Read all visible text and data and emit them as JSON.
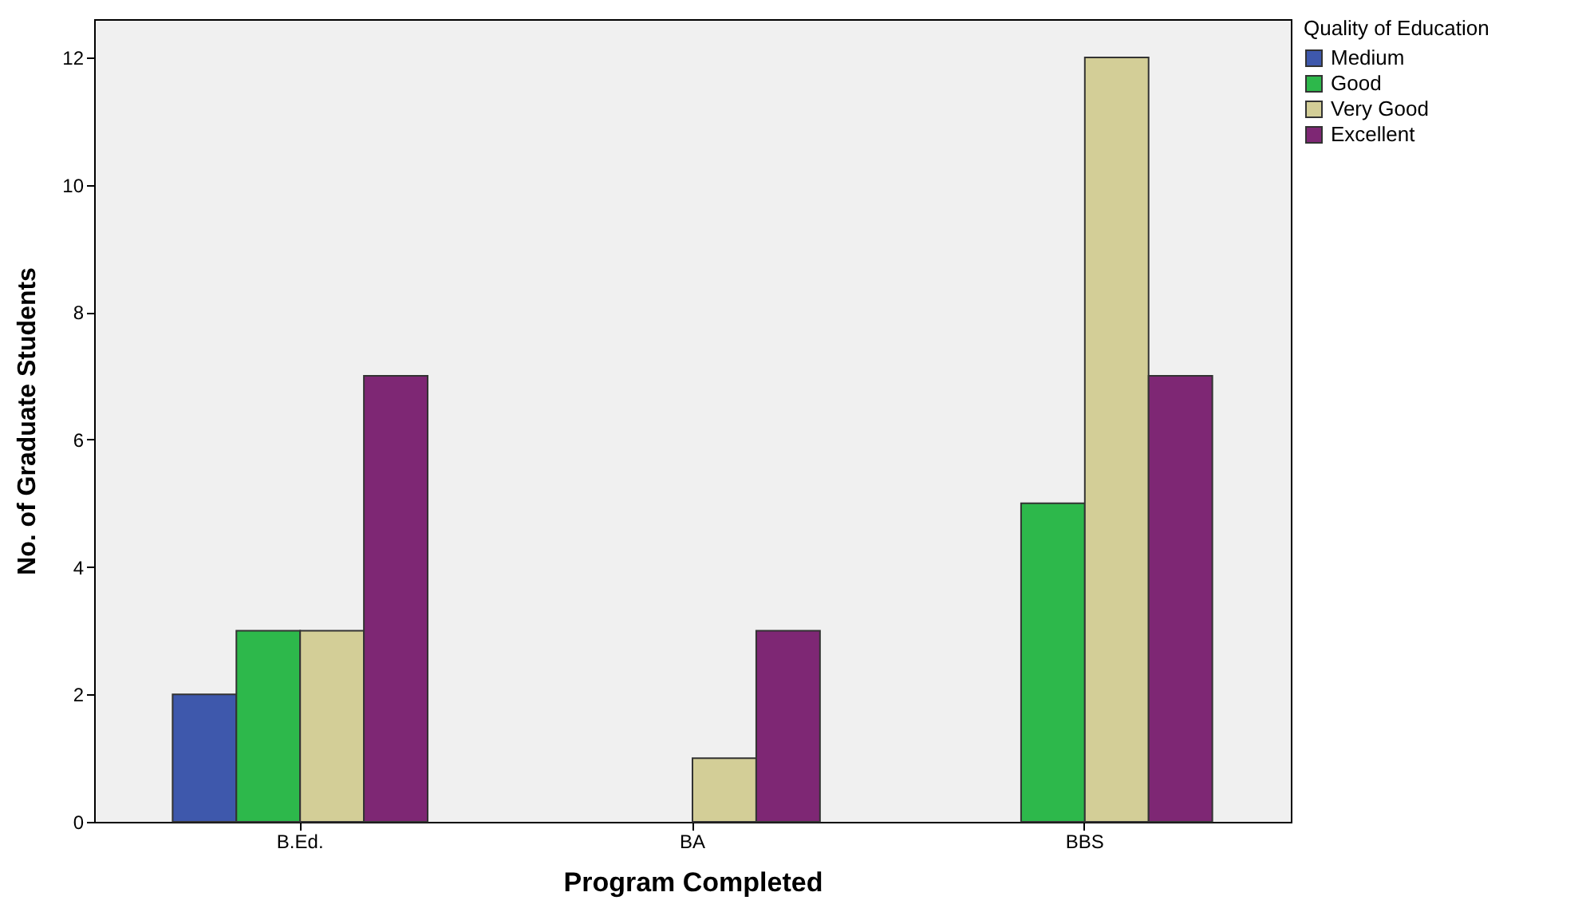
{
  "chart_data": {
    "type": "bar",
    "xlabel": "Program Completed",
    "ylabel": "No. of Graduate Students",
    "legend_title": "Quality of Education",
    "categories": [
      "B.Ed.",
      "BA",
      "BBS"
    ],
    "series": [
      {
        "name": "Medium",
        "color": "#3e58ac",
        "values": [
          2,
          null,
          null
        ]
      },
      {
        "name": "Good",
        "color": "#2db84b",
        "values": [
          3,
          null,
          5
        ]
      },
      {
        "name": "Very Good",
        "color": "#d3ce97",
        "values": [
          3,
          1,
          12
        ]
      },
      {
        "name": "Excellent",
        "color": "#7e2774",
        "values": [
          7,
          3,
          7
        ]
      }
    ],
    "ylim": [
      0,
      12.6
    ],
    "yticks": [
      0,
      2,
      4,
      6,
      8,
      10,
      12
    ],
    "grid": false,
    "legend": "top right"
  }
}
